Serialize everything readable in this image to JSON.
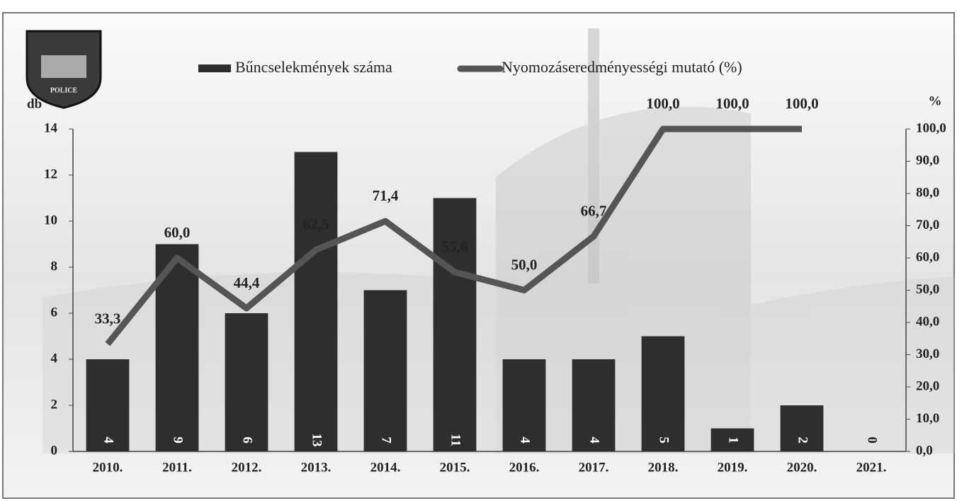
{
  "logo": {
    "text": "POLICE"
  },
  "chart_data": {
    "type": "combo",
    "categories": [
      "2010.",
      "2011.",
      "2012.",
      "2013.",
      "2014.",
      "2015.",
      "2016.",
      "2017.",
      "2018.",
      "2019.",
      "2020.",
      "2021."
    ],
    "series": [
      {
        "name": "Bűncselekmények száma",
        "type": "bar",
        "color": "#2e2e2e",
        "values": [
          4,
          9,
          6,
          13,
          7,
          11,
          4,
          4,
          5,
          1,
          2,
          0
        ]
      },
      {
        "name": "Nyomozáseredményességi mutató (%)",
        "type": "line",
        "axis": "y2",
        "color": "#555555",
        "values": [
          33.3,
          60.0,
          44.4,
          62.5,
          71.4,
          55.6,
          50.0,
          66.7,
          100.0,
          100.0,
          100.0,
          null
        ],
        "value_labels": [
          "33,3",
          "60,0",
          "44,4",
          "62,5",
          "71,4",
          "55,6",
          "50,0",
          "66,7",
          "100,0",
          "100,0",
          "100,0",
          null
        ]
      }
    ],
    "ylabel": "db",
    "y2label": "%",
    "ylim": [
      0,
      14
    ],
    "yticks": [
      0,
      2,
      4,
      6,
      8,
      10,
      12,
      14
    ],
    "y2lim": [
      0,
      100
    ],
    "y2ticks": [
      {
        "value": 0,
        "label": "0,0"
      },
      {
        "value": 10,
        "label": "10,0"
      },
      {
        "value": 20,
        "label": "20,0"
      },
      {
        "value": 30,
        "label": "30,0"
      },
      {
        "value": 40,
        "label": "40,0"
      },
      {
        "value": 50,
        "label": "50,0"
      },
      {
        "value": 60,
        "label": "60,0"
      },
      {
        "value": 70,
        "label": "70,0"
      },
      {
        "value": 80,
        "label": "80,0"
      },
      {
        "value": 90,
        "label": "90,0"
      },
      {
        "value": 100,
        "label": "100,0"
      }
    ],
    "legend": "top"
  }
}
